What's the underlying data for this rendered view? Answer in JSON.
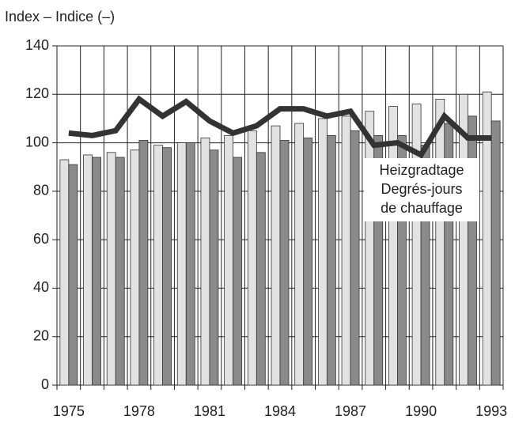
{
  "chart_data": {
    "type": "bar",
    "ylabel": "Index – Indice (–)",
    "categories": [
      1975,
      null,
      null,
      1978,
      null,
      null,
      1981,
      null,
      null,
      1984,
      null,
      null,
      1987,
      null,
      null,
      1990,
      null,
      null,
      1993
    ],
    "series": [
      {
        "color": "#e2e2e2",
        "values": [
          93,
          95,
          96,
          97,
          99,
          100,
          102,
          103,
          105,
          107,
          108,
          110,
          111,
          113,
          115,
          116,
          118,
          120,
          121
        ]
      },
      {
        "color": "#8a8a8a",
        "values": [
          91,
          94,
          94,
          101,
          98,
          100,
          97,
          94,
          96,
          101,
          102,
          103,
          105,
          103,
          103,
          99,
          108,
          111,
          109
        ]
      },
      {
        "type": "line",
        "color": "#333333",
        "values": [
          104,
          103,
          105,
          118,
          111,
          117,
          109,
          104,
          107,
          114,
          114,
          111,
          113,
          99,
          100,
          95,
          111,
          102,
          102
        ]
      }
    ],
    "annotation": [
      "Heizgradtage",
      "Degrés-jours",
      "de chauffage"
    ],
    "ylim": [
      0,
      140
    ],
    "yticks": [
      0,
      20,
      40,
      60,
      80,
      100,
      120,
      140
    ],
    "grid": true
  }
}
